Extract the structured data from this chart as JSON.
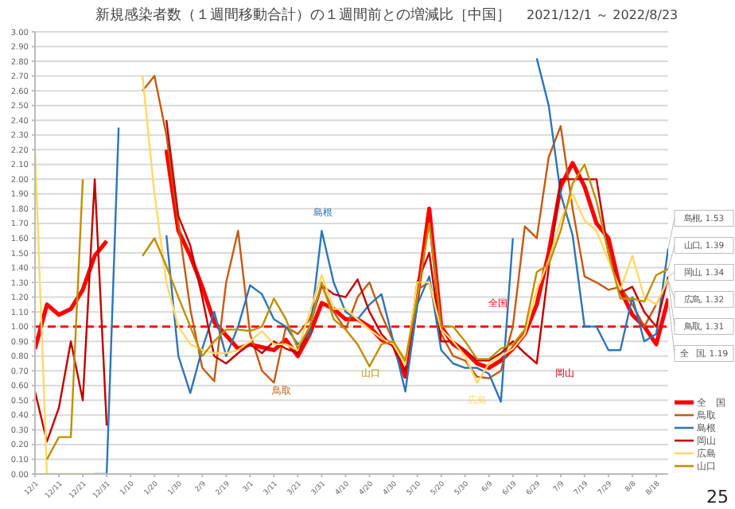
{
  "chart_data": {
    "type": "line",
    "title": "新規感染者数（１週間移動合計）の１週間前との増減比［中国］",
    "subtitle": "2021/12/1 ～ 2022/8/23",
    "x": [
      "2021-12-01",
      "2021-12-06",
      "2021-12-11",
      "2021-12-16",
      "2021-12-21",
      "2021-12-26",
      "2021-12-31",
      "2022-01-05",
      "2022-01-10",
      "2022-01-15",
      "2022-01-20",
      "2022-01-25",
      "2022-01-30",
      "2022-02-04",
      "2022-02-09",
      "2022-02-14",
      "2022-02-19",
      "2022-02-24",
      "2022-03-01",
      "2022-03-06",
      "2022-03-11",
      "2022-03-16",
      "2022-03-21",
      "2022-03-26",
      "2022-03-31",
      "2022-04-05",
      "2022-04-10",
      "2022-04-15",
      "2022-04-20",
      "2022-04-25",
      "2022-04-30",
      "2022-05-05",
      "2022-05-10",
      "2022-05-15",
      "2022-05-20",
      "2022-05-25",
      "2022-05-30",
      "2022-06-04",
      "2022-06-09",
      "2022-06-14",
      "2022-06-19",
      "2022-06-24",
      "2022-06-29",
      "2022-07-04",
      "2022-07-09",
      "2022-07-14",
      "2022-07-19",
      "2022-07-24",
      "2022-07-29",
      "2022-08-03",
      "2022-08-08",
      "2022-08-13",
      "2022-08-18",
      "2022-08-23"
    ],
    "series": [
      {
        "name": "全　国",
        "color": "#ff0000",
        "values": [
          0.85,
          1.15,
          1.08,
          1.12,
          1.25,
          1.48,
          1.58,
          null,
          null,
          null,
          null,
          2.2,
          1.65,
          1.48,
          1.27,
          1.03,
          0.94,
          0.85,
          0.88,
          0.86,
          0.84,
          0.91,
          0.8,
          0.95,
          1.16,
          1.12,
          1.05,
          1.05,
          1.0,
          0.91,
          0.88,
          0.66,
          1.2,
          1.8,
          1.0,
          0.88,
          0.83,
          0.75,
          0.72,
          0.77,
          0.85,
          0.95,
          1.15,
          1.5,
          1.95,
          2.11,
          1.95,
          1.7,
          1.6,
          1.25,
          1.08,
          1.0,
          0.88,
          1.19
        ]
      },
      {
        "name": "鳥取",
        "color": "#c55a11",
        "values": [
          null,
          null,
          null,
          null,
          null,
          null,
          null,
          null,
          null,
          2.6,
          2.7,
          2.3,
          1.7,
          1.12,
          0.72,
          0.63,
          1.3,
          1.65,
          0.95,
          0.7,
          0.62,
          1.0,
          0.95,
          1.05,
          1.28,
          1.1,
          0.98,
          1.2,
          1.3,
          1.08,
          0.9,
          0.74,
          1.25,
          1.3,
          0.95,
          0.8,
          0.77,
          0.66,
          0.65,
          0.7,
          1.0,
          1.68,
          1.6,
          2.15,
          2.36,
          1.8,
          1.34,
          1.3,
          1.25,
          1.27,
          1.15,
          1.0,
          1.15,
          1.31
        ]
      },
      {
        "name": "島根",
        "color": "#2e75b6",
        "values": [
          null,
          null,
          null,
          null,
          null,
          0,
          0,
          2.35,
          null,
          null,
          null,
          1.62,
          0.8,
          0.55,
          0.85,
          1.1,
          0.8,
          1.0,
          1.28,
          1.22,
          1.05,
          1.0,
          0.88,
          0.95,
          1.65,
          1.3,
          1.1,
          1.05,
          1.15,
          1.22,
          0.9,
          0.56,
          1.15,
          1.34,
          0.84,
          0.75,
          0.72,
          0.72,
          0.68,
          0.49,
          1.6,
          null,
          2.82,
          2.5,
          1.9,
          1.62,
          1.0,
          1.0,
          0.84,
          0.84,
          1.2,
          0.9,
          0.95,
          1.53
        ]
      },
      {
        "name": "岡山",
        "color": "#c00000",
        "values": [
          0.56,
          0.22,
          0.45,
          0.9,
          0.5,
          2.0,
          0.33,
          null,
          null,
          null,
          null,
          2.4,
          1.75,
          1.55,
          1.2,
          0.8,
          0.75,
          0.82,
          0.88,
          0.82,
          0.9,
          0.85,
          0.82,
          1.0,
          1.28,
          1.22,
          1.2,
          1.32,
          1.1,
          0.95,
          0.86,
          0.7,
          1.3,
          1.5,
          0.9,
          0.9,
          0.84,
          0.77,
          0.77,
          0.82,
          0.9,
          0.82,
          0.75,
          1.4,
          2.0,
          2.0,
          2.0,
          2.0,
          1.5,
          1.23,
          1.27,
          1.1,
          1.0,
          1.34
        ]
      },
      {
        "name": "広島",
        "color": "#ffd966",
        "values": [
          2.2,
          0,
          0,
          0,
          0,
          0,
          null,
          null,
          null,
          2.7,
          1.9,
          1.3,
          1.0,
          0.88,
          0.84,
          0.82,
          0.82,
          0.84,
          0.9,
          0.97,
          0.88,
          0.88,
          0.84,
          1.1,
          1.35,
          1.12,
          1.12,
          1.05,
          0.98,
          0.92,
          0.88,
          0.74,
          1.3,
          1.3,
          0.98,
          0.9,
          0.8,
          0.62,
          0.75,
          0.8,
          0.85,
          0.95,
          1.25,
          1.45,
          1.72,
          1.9,
          1.72,
          1.65,
          1.45,
          1.25,
          1.48,
          1.2,
          1.15,
          1.32
        ]
      },
      {
        "name": "山口",
        "color": "#bf9000",
        "values": [
          null,
          0.1,
          0.25,
          0.25,
          2.0,
          null,
          null,
          null,
          null,
          1.48,
          1.6,
          1.41,
          1.2,
          1.0,
          0.8,
          0.9,
          0.98,
          0.98,
          0.97,
          1.0,
          1.19,
          1.05,
          0.85,
          1.0,
          1.3,
          1.05,
          0.98,
          0.88,
          0.73,
          0.88,
          0.9,
          0.77,
          1.2,
          1.7,
          1.0,
          1.0,
          0.9,
          0.78,
          0.78,
          0.85,
          0.88,
          0.98,
          1.37,
          1.42,
          1.65,
          1.97,
          2.1,
          1.85,
          1.5,
          1.19,
          1.19,
          1.17,
          1.35,
          1.39
        ]
      }
    ],
    "xlim": [
      "2021-12-01",
      "2022-08-23"
    ],
    "xticks": [
      {
        "value": "2021-12-01",
        "label": "12/1"
      },
      {
        "value": "2021-12-11",
        "label": "12/11"
      },
      {
        "value": "2021-12-21",
        "label": "12/21"
      },
      {
        "value": "2021-12-31",
        "label": "12/31"
      },
      {
        "value": "2022-01-10",
        "label": "1/10"
      },
      {
        "value": "2022-01-20",
        "label": "1/20"
      },
      {
        "value": "2022-01-30",
        "label": "1/30"
      },
      {
        "value": "2022-02-09",
        "label": "2/9"
      },
      {
        "value": "2022-02-19",
        "label": "2/19"
      },
      {
        "value": "2022-03-01",
        "label": "3/1"
      },
      {
        "value": "2022-03-11",
        "label": "3/11"
      },
      {
        "value": "2022-03-21",
        "label": "3/21"
      },
      {
        "value": "2022-03-31",
        "label": "3/31"
      },
      {
        "value": "2022-04-10",
        "label": "4/10"
      },
      {
        "value": "2022-04-20",
        "label": "4/20"
      },
      {
        "value": "2022-04-30",
        "label": "4/30"
      },
      {
        "value": "2022-05-10",
        "label": "5/10"
      },
      {
        "value": "2022-05-20",
        "label": "5/20"
      },
      {
        "value": "2022-05-30",
        "label": "5/30"
      },
      {
        "value": "2022-06-09",
        "label": "6/9"
      },
      {
        "value": "2022-06-19",
        "label": "6/19"
      },
      {
        "value": "2022-06-29",
        "label": "6/29"
      },
      {
        "value": "2022-07-09",
        "label": "7/9"
      },
      {
        "value": "2022-07-19",
        "label": "7/19"
      },
      {
        "value": "2022-07-29",
        "label": "7/29"
      },
      {
        "value": "2022-08-08",
        "label": "8/8"
      },
      {
        "value": "2022-08-18",
        "label": "8/18"
      }
    ],
    "ylim": [
      0,
      3
    ],
    "yticks": [
      {
        "value": 0,
        "label": "0.00"
      },
      {
        "value": 0.1,
        "label": "0.10"
      },
      {
        "value": 0.2,
        "label": "0.20"
      },
      {
        "value": 0.3,
        "label": "0.30"
      },
      {
        "value": 0.4,
        "label": "0.40"
      },
      {
        "value": 0.5,
        "label": "0.50"
      },
      {
        "value": 0.6,
        "label": "0.60"
      },
      {
        "value": 0.7,
        "label": "0.70"
      },
      {
        "value": 0.8,
        "label": "0.80"
      },
      {
        "value": 0.9,
        "label": "0.90"
      },
      {
        "value": 1,
        "label": "1.00"
      },
      {
        "value": 1.1,
        "label": "1.10"
      },
      {
        "value": 1.2,
        "label": "1.20"
      },
      {
        "value": 1.3,
        "label": "1.30"
      },
      {
        "value": 1.4,
        "label": "1.40"
      },
      {
        "value": 1.5,
        "label": "1.50"
      },
      {
        "value": 1.6,
        "label": "1.60"
      },
      {
        "value": 1.7,
        "label": "1.70"
      },
      {
        "value": 1.8,
        "label": "1.80"
      },
      {
        "value": 1.9,
        "label": "1.90"
      },
      {
        "value": 2,
        "label": "2.00"
      },
      {
        "value": 2.1,
        "label": "2.10"
      },
      {
        "value": 2.2,
        "label": "2.20"
      },
      {
        "value": 2.3,
        "label": "2.30"
      },
      {
        "value": 2.4,
        "label": "2.40"
      },
      {
        "value": 2.5,
        "label": "2.50"
      },
      {
        "value": 2.6,
        "label": "2.60"
      },
      {
        "value": 2.7,
        "label": "2.70"
      },
      {
        "value": 2.8,
        "label": "2.80"
      },
      {
        "value": 2.9,
        "label": "2.90"
      },
      {
        "value": 3,
        "label": "3.00"
      }
    ],
    "ref_lines": [
      {
        "axis": "y",
        "value": 1,
        "color": "#ff0000",
        "line_style": "dashed"
      }
    ],
    "annotations": [
      "25",
      "島根",
      "鳥取",
      "山口",
      "広島",
      "全国",
      "岡山",
      {
        "text": "島根, 1.53",
        "x": "2022-08-23",
        "y": 1.53
      },
      {
        "text": "山口, 1.39",
        "x": "2022-08-23",
        "y": 1.39
      },
      {
        "text": "岡山, 1.34",
        "x": "2022-08-23",
        "y": 1.34
      },
      {
        "text": "広島, 1.32",
        "x": "2022-08-23",
        "y": 1.32
      },
      {
        "text": "鳥取, 1.31",
        "x": "2022-08-23",
        "y": 1.31
      },
      {
        "text": "全　国, 1.19",
        "x": "2022-08-23",
        "y": 1.19
      }
    ],
    "grid": "y",
    "legend": "bottom right",
    "marker": "none"
  }
}
